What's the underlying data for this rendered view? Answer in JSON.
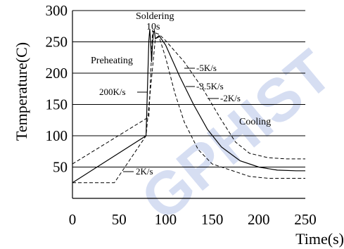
{
  "chart_data": {
    "type": "line",
    "title": "",
    "xlabel": "Time(s)",
    "ylabel": "Temperature(C)",
    "xlim": [
      0,
      250
    ],
    "ylim": [
      0,
      300
    ],
    "xticks": [
      0,
      50,
      100,
      150,
      200,
      250
    ],
    "yticks": [
      50,
      100,
      150,
      200,
      250,
      300
    ],
    "grid": "horizontal",
    "series": [
      {
        "style": "solid",
        "points": [
          [
            0,
            25
          ],
          [
            79,
            100
          ],
          [
            82,
            252
          ],
          [
            83,
            270
          ],
          [
            84,
            248
          ],
          [
            85,
            218
          ],
          [
            86,
            248
          ],
          [
            87,
            265
          ],
          [
            88,
            268
          ],
          [
            89,
            255
          ],
          [
            93,
            260
          ],
          [
            100,
            245
          ],
          [
            115,
            195
          ],
          [
            130,
            150
          ],
          [
            145,
            110
          ],
          [
            160,
            82
          ],
          [
            180,
            60
          ],
          [
            200,
            50
          ],
          [
            220,
            45
          ],
          [
            240,
            44
          ],
          [
            250,
            44
          ]
        ]
      },
      {
        "style": "dashed",
        "points": [
          [
            0,
            55
          ],
          [
            82,
            130
          ],
          [
            86,
            268
          ],
          [
            88,
            265
          ],
          [
            93,
            262
          ],
          [
            100,
            252
          ],
          [
            120,
            218
          ],
          [
            140,
            175
          ],
          [
            160,
            125
          ],
          [
            175,
            90
          ],
          [
            190,
            72
          ],
          [
            210,
            65
          ],
          [
            230,
            63
          ],
          [
            250,
            63
          ]
        ]
      },
      {
        "style": "dashed",
        "points": [
          [
            0,
            25
          ],
          [
            45,
            25
          ],
          [
            79,
            100
          ],
          [
            89,
            255
          ],
          [
            93,
            258
          ],
          [
            100,
            225
          ],
          [
            110,
            168
          ],
          [
            120,
            122
          ],
          [
            135,
            78
          ],
          [
            150,
            55
          ],
          [
            170,
            45
          ],
          [
            190,
            35
          ],
          [
            210,
            32
          ],
          [
            250,
            32
          ]
        ]
      }
    ],
    "annotations": {
      "soldering": "Soldering",
      "soldering_duration": "10s",
      "preheating": "Preheating",
      "cooling": "Cooling",
      "rate_200": "200K/s",
      "rate_2": "2K/s",
      "rate_5": "-5K/s",
      "rate_35": "-3.5K/s",
      "rate_2neg": "-2K/s"
    }
  },
  "watermark": "GPHIST"
}
